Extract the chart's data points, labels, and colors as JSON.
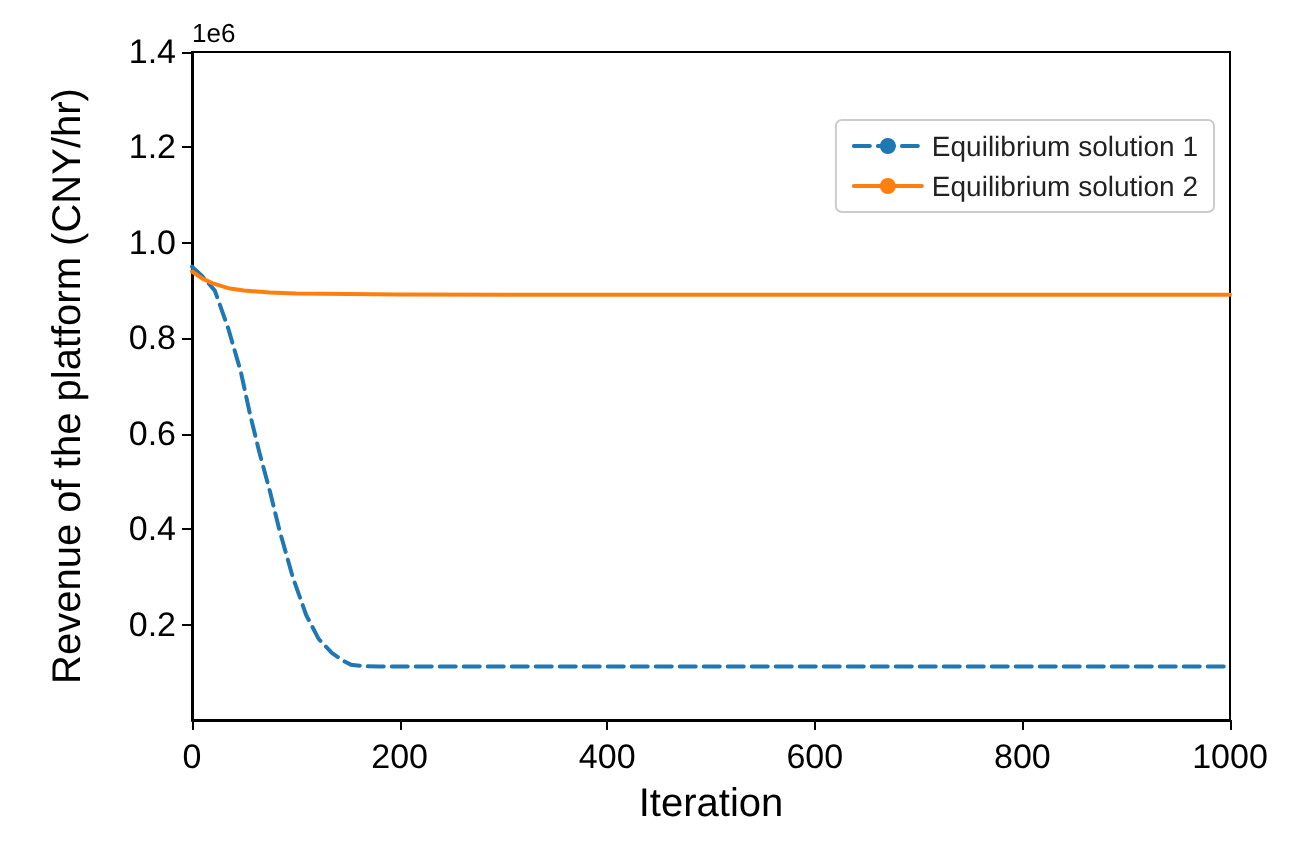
{
  "chart_data": {
    "type": "line",
    "xlabel": "Iteration",
    "ylabel": "Revenue of the platform (CNY/hr)",
    "annotations": [
      "1e6"
    ],
    "xlim": [
      0,
      1000
    ],
    "xticks": [
      0,
      200,
      400,
      600,
      800,
      {
        "value": 1000,
        "label": "1000"
      }
    ],
    "ylim": [
      0,
      1.4
    ],
    "yticks": [
      0.2,
      0.4,
      0.6,
      0.8,
      {
        "value": 1.0,
        "label": "1.0"
      },
      1.2,
      1.4
    ],
    "grid": false,
    "legend": "top right",
    "marker": "none",
    "series": [
      {
        "name": "Equilibrium solution 1",
        "color": "#1f77b4",
        "line_style": "dashed",
        "x": [
          0,
          10,
          22,
          35,
          47,
          56,
          65,
          75,
          84,
          97,
          110,
          122,
          135,
          145,
          153,
          165,
          180,
          200,
          300,
          500,
          700,
          1000
        ],
        "values": [
          0.95,
          0.93,
          0.9,
          0.82,
          0.73,
          0.64,
          0.56,
          0.48,
          0.4,
          0.3,
          0.22,
          0.17,
          0.14,
          0.125,
          0.116,
          0.113,
          0.112,
          0.112,
          0.112,
          0.112,
          0.112,
          0.112
        ]
      },
      {
        "name": "Equilibrium solution 2",
        "color": "#ff7f0e",
        "line_style": "solid",
        "x": [
          0,
          10,
          20,
          35,
          50,
          75,
          100,
          150,
          200,
          400,
          600,
          800,
          1000
        ],
        "values": [
          0.94,
          0.925,
          0.915,
          0.905,
          0.9,
          0.896,
          0.894,
          0.893,
          0.892,
          0.891,
          0.891,
          0.891,
          0.891
        ]
      }
    ]
  }
}
